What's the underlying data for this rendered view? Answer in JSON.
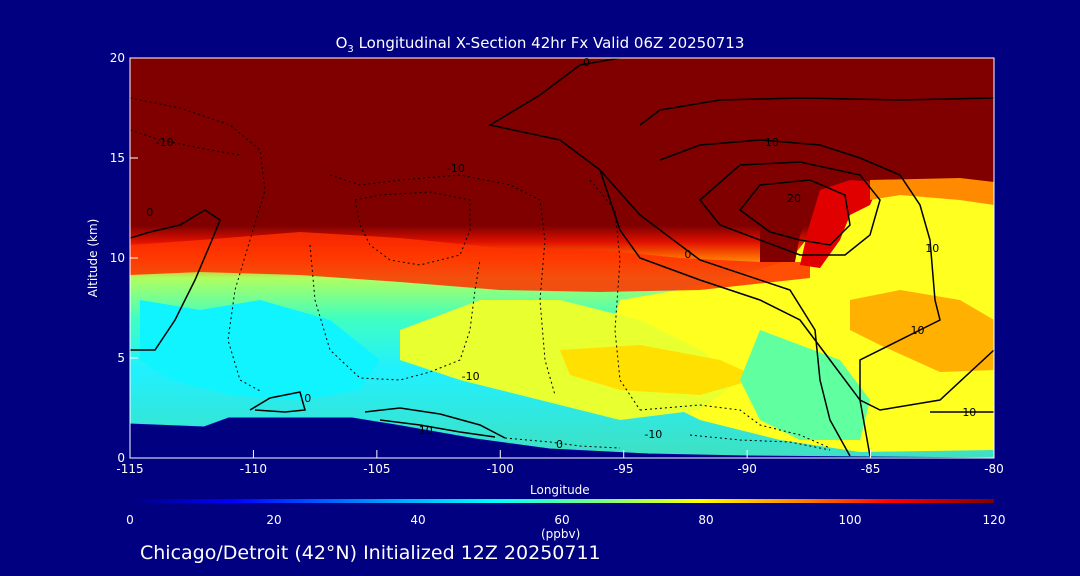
{
  "title": {
    "prefix": "O",
    "sub": "3",
    "rest": " Longitudinal X-Section 42hr  Fx Valid 06Z 20250713"
  },
  "footer": "Chicago/Detroit (42°N) Initialized 12Z 20250711",
  "colors": {
    "background": "#000080",
    "foreground": "#ffffff"
  },
  "chart_data": {
    "type": "heatmap",
    "title": "O3 Longitudinal X-Section 42hr  Fx Valid 06Z 20250713",
    "xlabel": "Longitude",
    "ylabel": "Altitude (km)",
    "xlim": [
      -115,
      -80
    ],
    "ylim": [
      0,
      20
    ],
    "x_ticks": [
      "-115",
      "-110",
      "-105",
      "-100",
      "-95",
      "-90",
      "-85",
      "-80"
    ],
    "x_tick_values": [
      -115,
      -110,
      -105,
      -100,
      -95,
      -90,
      -85,
      -80
    ],
    "y_ticks": [
      "0",
      "5",
      "10",
      "15",
      "20"
    ],
    "y_tick_values": [
      0,
      5,
      10,
      15,
      20
    ],
    "colorbar": {
      "unit": "(ppbv)",
      "range": [
        0,
        120
      ],
      "ticks": [
        "0",
        "20",
        "40",
        "60",
        "80",
        "100",
        "120"
      ],
      "tick_values": [
        0,
        20,
        40,
        60,
        80,
        100,
        120
      ]
    },
    "terrain_top_km": [
      [
        -115,
        1.7
      ],
      [
        -112,
        1.55
      ],
      [
        -111,
        2.0
      ],
      [
        -106,
        2.0
      ],
      [
        -104,
        1.6
      ],
      [
        -101,
        0.95
      ],
      [
        -98,
        0.45
      ],
      [
        -94,
        0.2
      ],
      [
        -90,
        0.1
      ],
      [
        -85,
        0.05
      ],
      [
        -80,
        0.0
      ]
    ],
    "contour_labels": [
      {
        "text": "-10",
        "lon": -113.6,
        "alt": 15.6
      },
      {
        "text": "-10",
        "lon": -101.8,
        "alt": 14.3
      },
      {
        "text": "0",
        "lon": -114.2,
        "alt": 12.1
      },
      {
        "text": "0",
        "lon": -96.5,
        "alt": 19.6
      },
      {
        "text": "0",
        "lon": -92.4,
        "alt": 10.0
      },
      {
        "text": "10",
        "lon": -89.0,
        "alt": 15.6
      },
      {
        "text": "20",
        "lon": -88.1,
        "alt": 12.8
      },
      {
        "text": "10",
        "lon": -82.5,
        "alt": 10.3
      },
      {
        "text": "10",
        "lon": -83.1,
        "alt": 6.2
      },
      {
        "text": "10",
        "lon": -81.0,
        "alt": 2.1
      },
      {
        "text": "-10",
        "lon": -101.2,
        "alt": 3.9
      },
      {
        "text": "0",
        "lon": -107.8,
        "alt": 2.8
      },
      {
        "text": "-10",
        "lon": -103.1,
        "alt": 1.2
      },
      {
        "text": "-10",
        "lon": -93.8,
        "alt": 1.0
      },
      {
        "text": "0",
        "lon": -97.6,
        "alt": 0.5
      }
    ]
  }
}
